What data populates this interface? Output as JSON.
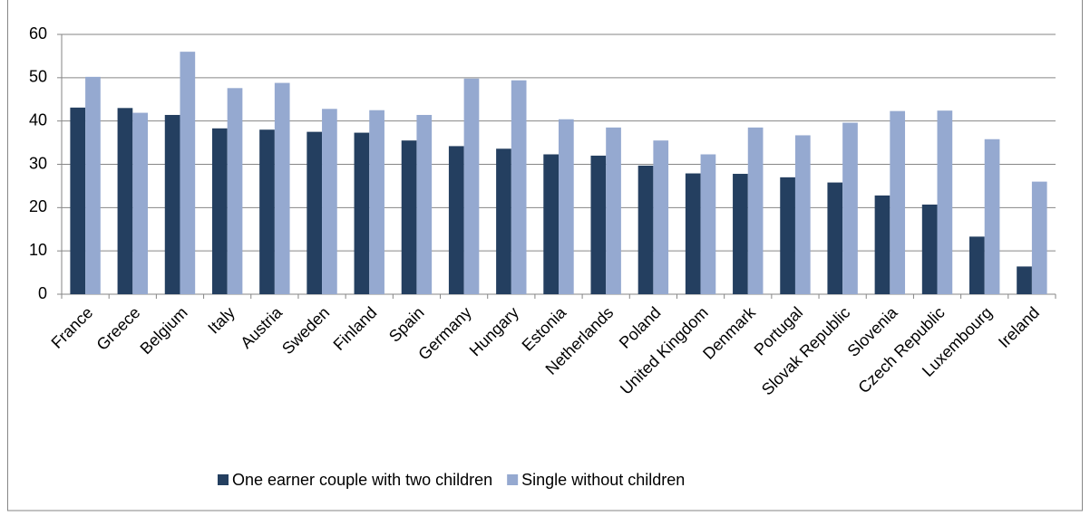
{
  "chart_data": {
    "type": "bar",
    "categories": [
      "France",
      "Greece",
      "Belgium",
      "Italy",
      "Austria",
      "Sweden",
      "Finland",
      "Spain",
      "Germany",
      "Hungary",
      "Estonia",
      "Netherlands",
      "Poland",
      "United Kingdom",
      "Denmark",
      "Portugal",
      "Slovak Republic",
      "Slovenia",
      "Czech Republic",
      "Luxembourg",
      "Ireland"
    ],
    "series": [
      {
        "name": "One earner couple with two children",
        "color": "#243f60",
        "values": [
          43.1,
          43,
          41.4,
          38.3,
          38,
          37.5,
          37.3,
          35.5,
          34.2,
          33.6,
          32.3,
          32,
          29.7,
          27.9,
          27.8,
          27,
          25.8,
          22.8,
          20.7,
          13.3,
          6.4
        ]
      },
      {
        "name": "Single without children",
        "color": "#95a9d0",
        "values": [
          50.2,
          41.9,
          56,
          47.6,
          48.8,
          42.8,
          42.5,
          41.4,
          49.8,
          49.4,
          40.4,
          38.5,
          35.5,
          32.3,
          38.5,
          36.7,
          39.6,
          42.3,
          42.4,
          35.8,
          26
        ]
      }
    ],
    "ylim": [
      0,
      60
    ],
    "yticks": [
      0,
      10,
      20,
      30,
      40,
      50,
      60
    ],
    "grid": true,
    "legend": "bottom"
  }
}
